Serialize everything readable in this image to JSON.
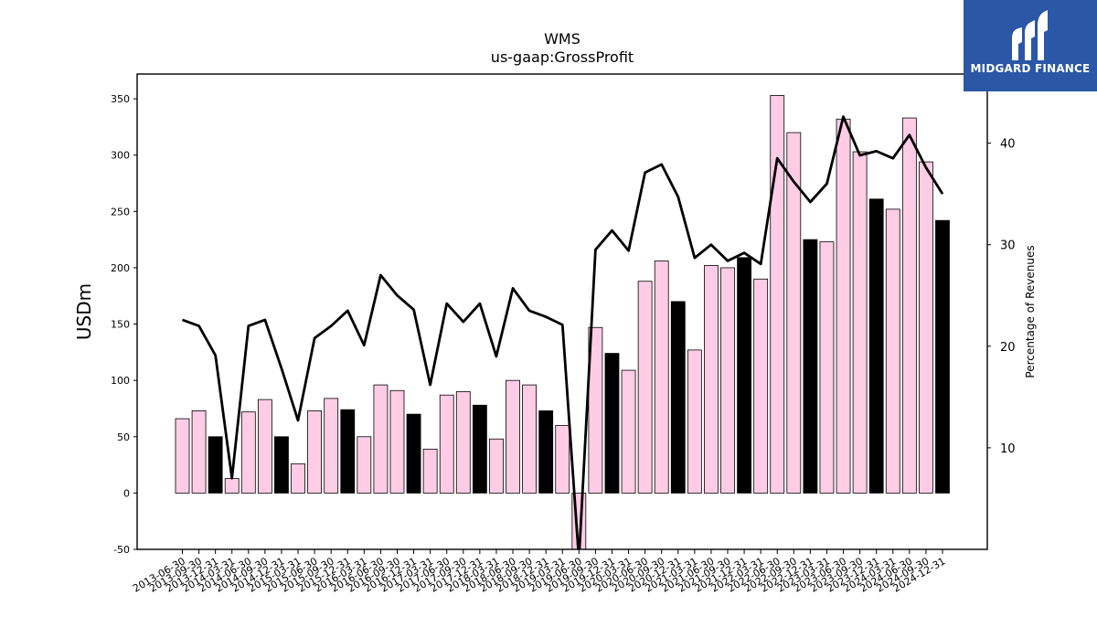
{
  "brand": {
    "name": "MIDGARD FINANCE",
    "bg_color": "#2a57a6"
  },
  "chart_data": {
    "type": "bar",
    "title": "WMS",
    "subtitle": "us-gaap:GrossProfit",
    "ylabel": "USDm",
    "y2label": "Percentage of Revenues",
    "ylim": [
      -50,
      372
    ],
    "y2lim": [
      0,
      46.8
    ],
    "yticks": [
      -50,
      0,
      50,
      100,
      150,
      200,
      250,
      300,
      350
    ],
    "y2ticks": [
      10,
      20,
      30,
      40
    ],
    "bar_colors": {
      "quarter": "#ffcce5",
      "fiscal_year_end": "#000000"
    },
    "line_color": "#000000",
    "categories": [
      "2013-06-30",
      "2013-09-30",
      "2013-12-31",
      "2014-03-31",
      "2014-06-30",
      "2014-09-30",
      "2014-12-31",
      "2015-03-31",
      "2015-06-30",
      "2015-09-30",
      "2015-12-31",
      "2016-03-31",
      "2016-06-30",
      "2016-09-30",
      "2016-12-31",
      "2017-03-31",
      "2017-06-30",
      "2017-09-30",
      "2017-12-31",
      "2018-03-31",
      "2018-06-30",
      "2018-09-30",
      "2018-12-31",
      "2019-03-31",
      "2019-06-30",
      "2019-09-30",
      "2019-12-31",
      "2020-03-31",
      "2020-06-30",
      "2020-09-30",
      "2020-12-31",
      "2021-03-31",
      "2021-06-30",
      "2021-09-30",
      "2021-12-31",
      "2022-03-31",
      "2022-06-30",
      "2022-09-30",
      "2022-12-31",
      "2023-03-31",
      "2023-06-30",
      "2023-09-30",
      "2023-12-31",
      "2024-03-31",
      "2024-06-30",
      "2024-09-30",
      "2024-12-31"
    ],
    "series": [
      {
        "kind": "bar",
        "values": [
          66,
          73,
          50,
          13,
          72,
          83,
          50,
          26,
          73,
          84,
          74,
          50,
          96,
          91,
          70,
          39,
          87,
          90,
          78,
          48,
          100,
          96,
          73,
          60,
          -58,
          147,
          124,
          109,
          188,
          206,
          170,
          127,
          202,
          200,
          209,
          190,
          353,
          320,
          225,
          223,
          332,
          303,
          261,
          252,
          333,
          294,
          242
        ],
        "fiscal_year_end": [
          false,
          false,
          true,
          false,
          false,
          false,
          true,
          false,
          false,
          false,
          true,
          false,
          false,
          false,
          true,
          false,
          false,
          false,
          true,
          false,
          false,
          false,
          true,
          false,
          false,
          false,
          true,
          false,
          false,
          false,
          true,
          false,
          false,
          false,
          true,
          false,
          false,
          false,
          true,
          false,
          false,
          false,
          true,
          false,
          false,
          false,
          true
        ]
      },
      {
        "kind": "line",
        "axis": "right",
        "values": [
          22.6,
          22.0,
          19.1,
          7.0,
          22.0,
          22.6,
          17.8,
          12.7,
          20.8,
          22.0,
          23.5,
          20.1,
          27.0,
          25.0,
          23.6,
          16.2,
          24.2,
          22.4,
          24.2,
          19.0,
          25.7,
          23.5,
          22.9,
          22.1,
          -1.0,
          29.5,
          31.4,
          29.4,
          37.1,
          37.9,
          34.7,
          28.7,
          30.0,
          28.4,
          29.2,
          28.1,
          38.5,
          36.2,
          34.2,
          36.0,
          42.6,
          38.8,
          39.2,
          38.5,
          40.8,
          37.6,
          35.0
        ]
      }
    ]
  }
}
